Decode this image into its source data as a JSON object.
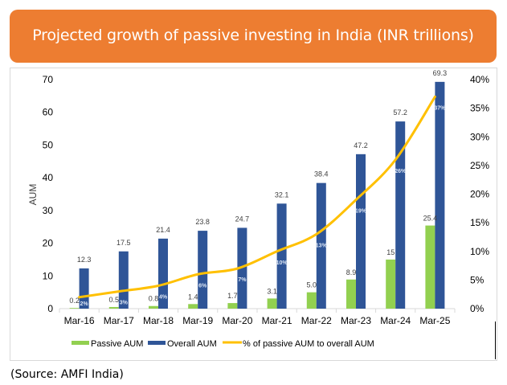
{
  "banner": {
    "title": "Projected growth of passive investing in India (INR trillions)"
  },
  "source": "(Source: AMFI India)",
  "colors": {
    "banner": "#ED7D31",
    "passive": "#92D050",
    "overall": "#2F5597",
    "line": "#FFC000"
  },
  "chart_data": {
    "type": "bar",
    "title": "Projected growth of passive investing in India (INR trillions)",
    "xlabel": "",
    "ylabel": "AUM",
    "y2label": "",
    "categories": [
      "Mar-16",
      "Mar-17",
      "Mar-18",
      "Mar-19",
      "Mar-20",
      "Mar-21",
      "Mar-22",
      "Mar-23",
      "Mar-24",
      "Mar-25"
    ],
    "series": [
      {
        "name": "Passive AUM",
        "type": "bar",
        "axis": "left",
        "values": [
          0.2,
          0.5,
          0.8,
          1.4,
          1.7,
          3.1,
          5.0,
          8.9,
          15,
          25.4
        ],
        "labels": [
          "0.2",
          "0.5",
          "0.8",
          "1.4",
          "1.7",
          "3.1",
          "5.0",
          "8.9",
          "15",
          "25.4"
        ]
      },
      {
        "name": "Overall AUM",
        "type": "bar",
        "axis": "left",
        "values": [
          12.3,
          17.5,
          21.4,
          23.8,
          24.7,
          32.1,
          38.4,
          47.2,
          57.2,
          69.3
        ],
        "labels": [
          "12.3",
          "17.5",
          "21.4",
          "23.8",
          "24.7",
          "32.1",
          "38.4",
          "47.2",
          "57.2",
          "69.3"
        ]
      },
      {
        "name": "% of passive AUM to overall AUM",
        "type": "line",
        "axis": "right",
        "values": [
          2,
          3,
          4,
          6,
          7,
          10,
          13,
          19,
          26,
          37
        ],
        "labels": [
          "2%",
          "3%",
          "4%",
          "6%",
          "7%",
          "10%",
          "13%",
          "19%",
          "26%",
          "37%"
        ]
      }
    ],
    "ylim": [
      0,
      70
    ],
    "yticks": [
      "0",
      "10",
      "20",
      "30",
      "40",
      "50",
      "60",
      "70"
    ],
    "y2lim": [
      0,
      40
    ],
    "y2ticks": [
      "0%",
      "5%",
      "10%",
      "15%",
      "20%",
      "25%",
      "30%",
      "35%",
      "40%"
    ],
    "grid": false,
    "legend": "bottom"
  }
}
